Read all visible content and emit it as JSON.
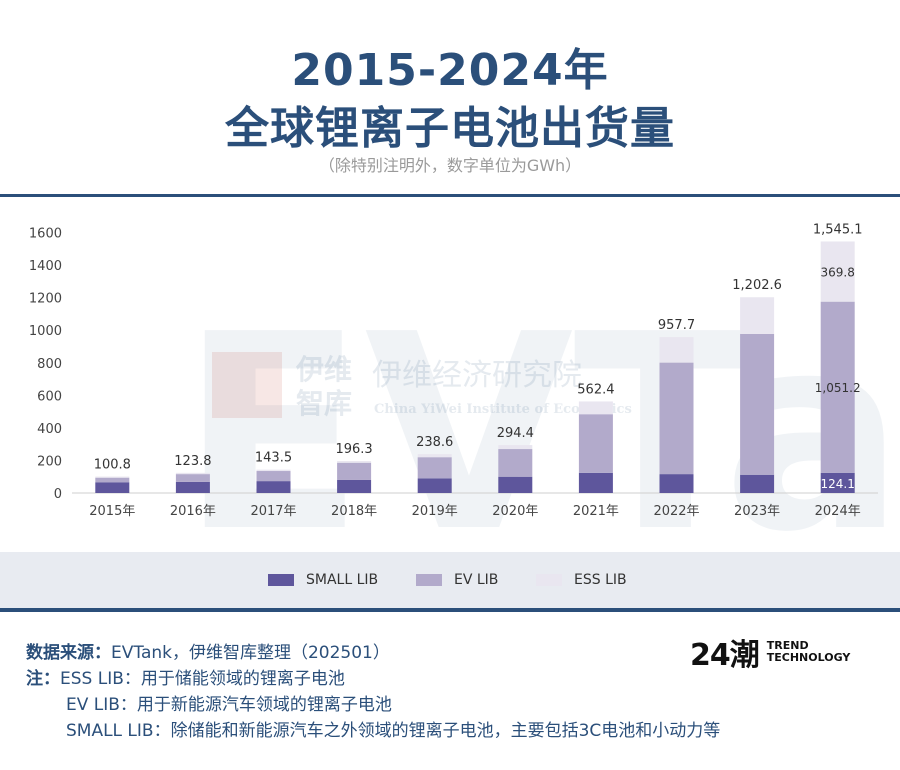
{
  "header": {
    "title_line1": "2015-2024年",
    "title_line2": "全球锂离子电池出货量",
    "subtitle": "（除特别注明外，数字单位为GWh）"
  },
  "colors": {
    "title": "#2b4f7a",
    "small_lib": "#5e569c",
    "ev_lib": "#b2aacb",
    "ess_lib": "#e9e6f0"
  },
  "watermark": {
    "big_letters": "EVTank",
    "cn_short_1": "伊维",
    "cn_short_2": "智库",
    "cn_long": "伊维经济研究院",
    "en": "China YiWei Institute of Economics"
  },
  "chart_data": {
    "type": "bar",
    "stacked": true,
    "title": "2015-2024年 全球锂离子电池出货量",
    "categories": [
      "2015年",
      "2016年",
      "2017年",
      "2018年",
      "2019年",
      "2020年",
      "2021年",
      "2022年",
      "2023年",
      "2024年"
    ],
    "series": [
      {
        "name": "SMALL LIB",
        "values": [
          66,
          68,
          73,
          80,
          90,
          100,
          124,
          116,
          112,
          124.1
        ]
      },
      {
        "name": "EV LIB",
        "values": [
          28,
          48,
          62,
          106,
          130,
          170,
          360,
          685,
          865,
          1051.2
        ]
      },
      {
        "name": "ESS LIB",
        "values": [
          6.8,
          7.8,
          8.5,
          10.3,
          18.6,
          24.4,
          78.4,
          156.7,
          225.6,
          369.8
        ]
      }
    ],
    "totals": [
      100.8,
      123.8,
      143.5,
      196.3,
      238.6,
      294.4,
      562.4,
      957.7,
      1202.6,
      1545.1
    ],
    "total_labels": [
      "100.8",
      "123.8",
      "143.5",
      "196.3",
      "238.6",
      "294.4",
      "562.4",
      "957.7",
      "1,202.6",
      "1,545.1"
    ],
    "segment_labels_2024": {
      "small": "124.1",
      "ev": "1,051.2",
      "ess": "369.8"
    },
    "ylim": [
      0,
      1600
    ],
    "yticks": [
      0,
      200,
      400,
      600,
      800,
      1000,
      1200,
      1400,
      1600
    ],
    "ytick_labels": [
      "0",
      "200",
      "400",
      "600",
      "800",
      "1000",
      "1200",
      "1400",
      "1600"
    ],
    "xlabel": "",
    "ylabel": "",
    "legend_position": "bottom"
  },
  "legend": {
    "small": "SMALL LIB",
    "ev": "EV LIB",
    "ess": "ESS LIB"
  },
  "notes": {
    "source_label": "数据来源：",
    "source_text": "EVTank，伊维智库整理（202501）",
    "note_label": "注：",
    "ess_text": "ESS LIB：用于储能领域的锂离子电池",
    "ev_text": "EV LIB：用于新能源汽车领域的锂离子电池",
    "small_text": "SMALL LIB：除储能和新能源汽车之外领域的锂离子电池，主要包括3C电池和小动力等"
  },
  "logo": {
    "mark": "24潮",
    "line1": "TREND",
    "line2": "TECHNOLOGY"
  }
}
